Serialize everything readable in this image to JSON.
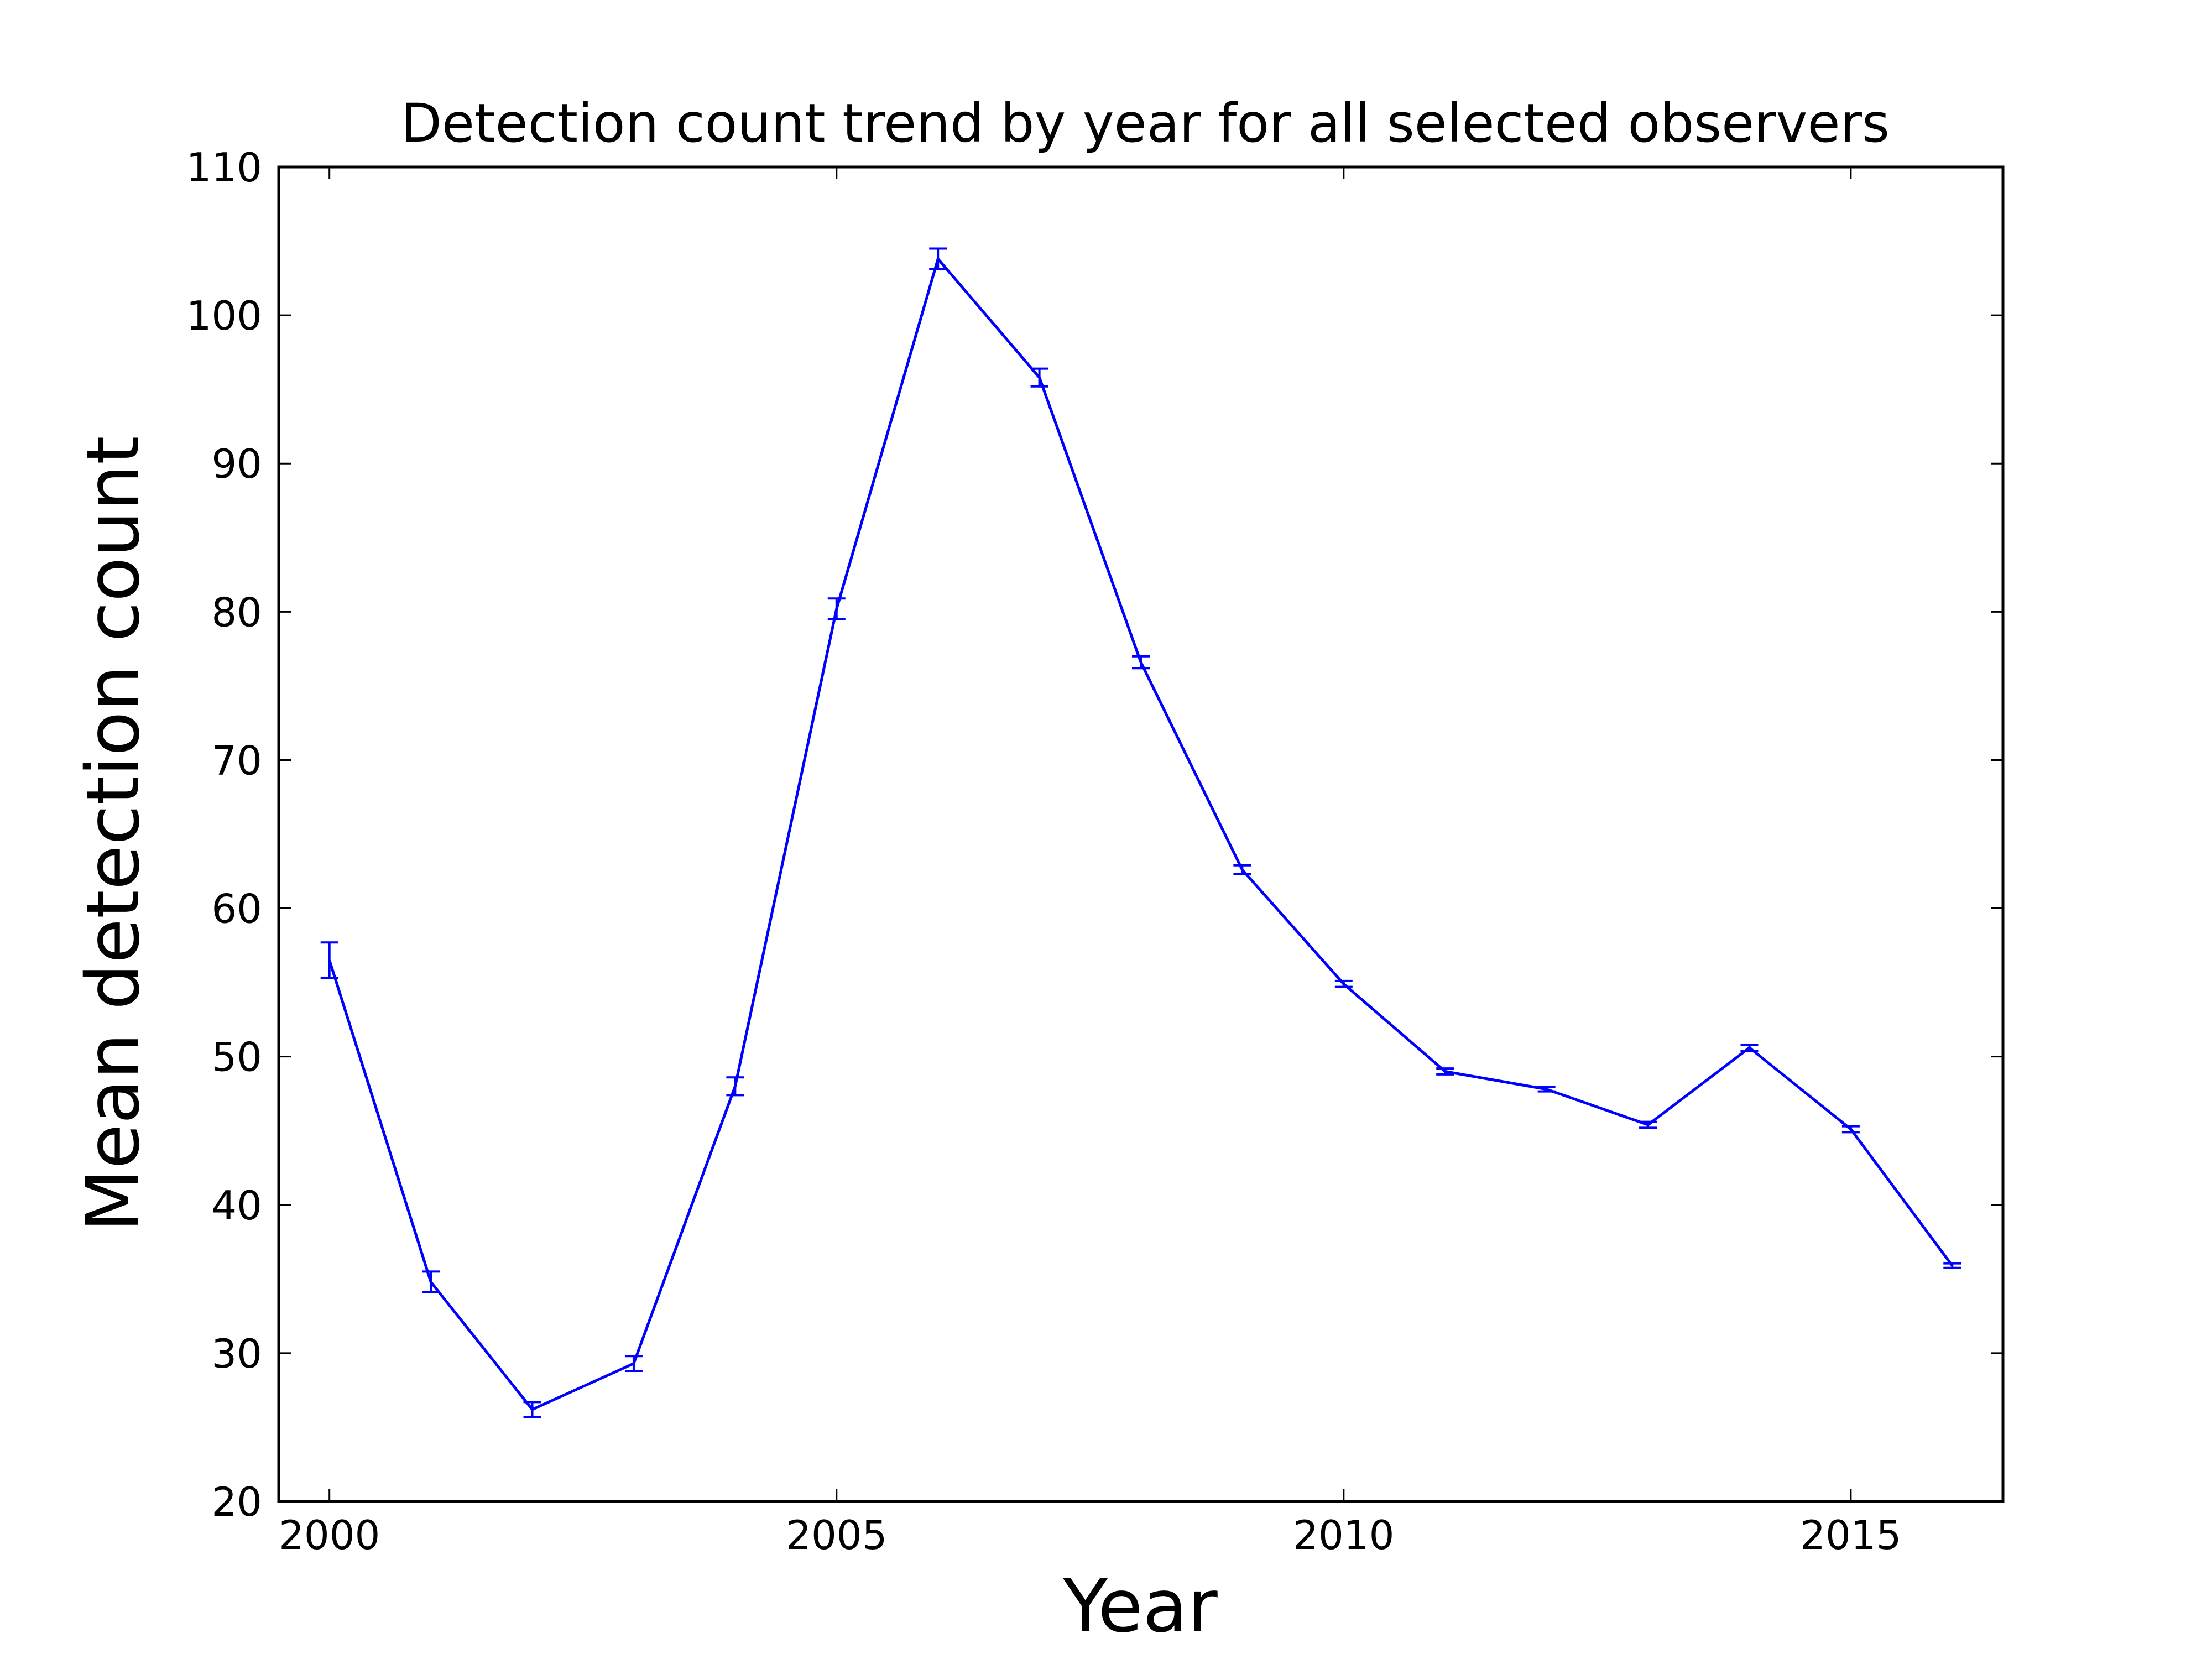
{
  "chart_data": {
    "type": "line",
    "title": "Detection count trend by year for all selected observers",
    "xlabel": "Year",
    "ylabel": "Mean detection count",
    "xlim": [
      1999.5,
      2016.5
    ],
    "ylim": [
      20,
      110
    ],
    "xticks": [
      2000,
      2005,
      2010,
      2015
    ],
    "yticks": [
      20,
      30,
      40,
      50,
      60,
      70,
      80,
      90,
      100,
      110
    ],
    "grid": false,
    "series": [
      {
        "color": "#0000ff",
        "x": [
          2000,
          2001,
          2002,
          2003,
          2004,
          2005,
          2006,
          2007,
          2008,
          2009,
          2010,
          2011,
          2012,
          2013,
          2014,
          2015,
          2016
        ],
        "y": [
          56.5,
          34.8,
          26.2,
          29.3,
          48.0,
          80.2,
          103.8,
          95.8,
          76.6,
          62.6,
          54.9,
          49.0,
          47.8,
          45.4,
          50.6,
          45.1,
          35.9
        ],
        "yerr": [
          1.2,
          0.7,
          0.5,
          0.5,
          0.6,
          0.7,
          0.7,
          0.6,
          0.4,
          0.3,
          0.2,
          0.2,
          0.15,
          0.2,
          0.2,
          0.2,
          0.15
        ]
      }
    ]
  }
}
